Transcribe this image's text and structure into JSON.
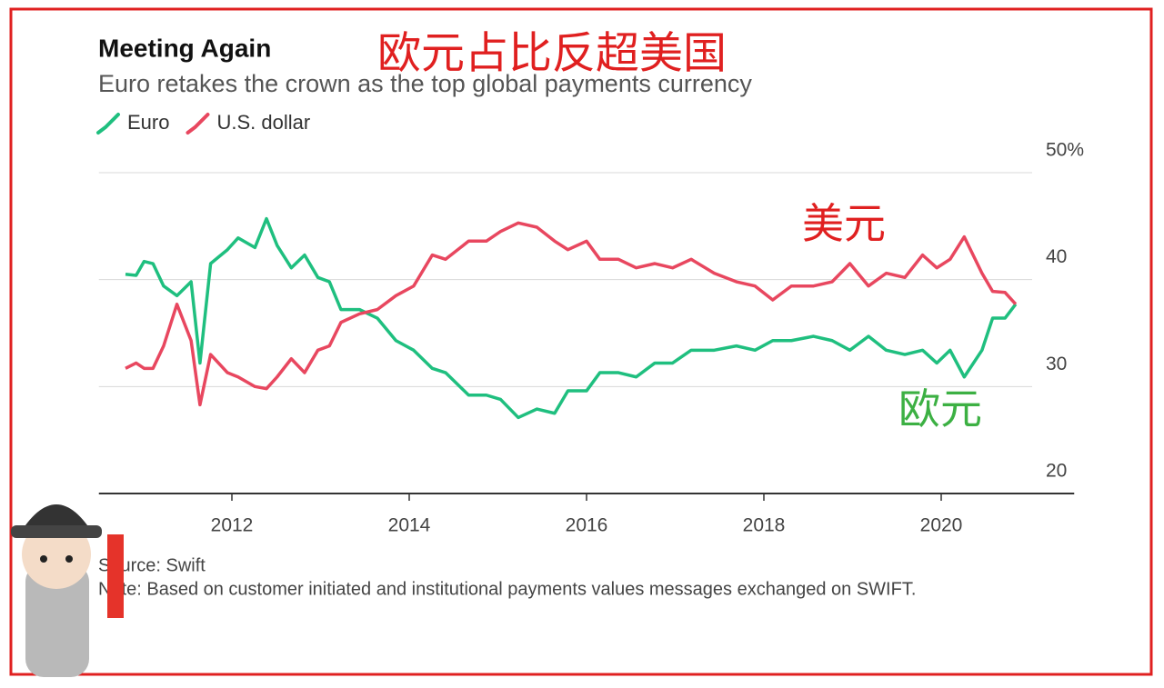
{
  "chart_data": {
    "type": "line",
    "title": "Meeting Again",
    "subtitle": "Euro retakes the crown as the top global payments currency",
    "source": "Source: Swift",
    "note": "Note: Based on customer initiated and institutional payments values messages exchanged on SWIFT.",
    "annotations": [
      {
        "text": "欧元占比反超美国",
        "color": "#e02020"
      },
      {
        "text": "美元",
        "color": "#e02020"
      },
      {
        "text": "欧元",
        "color": "#3cb043"
      }
    ],
    "x": [
      2010.8,
      2010.92,
      2011.01,
      2011.11,
      2011.23,
      2011.38,
      2011.54,
      2011.64,
      2011.76,
      2011.95,
      2012.07,
      2012.26,
      2012.39,
      2012.51,
      2012.67,
      2012.82,
      2012.97,
      2013.1,
      2013.23,
      2013.44,
      2013.64,
      2013.85,
      2014.05,
      2014.26,
      2014.41,
      2014.67,
      2014.87,
      2015.03,
      2015.23,
      2015.44,
      2015.64,
      2015.79,
      2016.0,
      2016.15,
      2016.36,
      2016.56,
      2016.77,
      2016.97,
      2017.18,
      2017.44,
      2017.69,
      2017.9,
      2018.1,
      2018.31,
      2018.56,
      2018.77,
      2018.97,
      2019.18,
      2019.38,
      2019.59,
      2019.79,
      2019.95,
      2020.1,
      2020.26,
      2020.46,
      2020.58,
      2020.72,
      2020.84
    ],
    "series": [
      {
        "name": "Euro",
        "color": "#1fbf7f",
        "values": [
          40.5,
          40.4,
          41.7,
          41.5,
          39.4,
          38.5,
          39.8,
          32.2,
          41.5,
          42.8,
          43.9,
          43.0,
          45.7,
          43.2,
          41.1,
          42.3,
          40.2,
          39.8,
          37.2,
          37.2,
          36.4,
          34.3,
          33.4,
          31.7,
          31.3,
          29.2,
          29.2,
          28.8,
          27.1,
          27.9,
          27.5,
          29.6,
          29.6,
          31.3,
          31.3,
          30.9,
          32.2,
          32.2,
          33.4,
          33.4,
          33.8,
          33.4,
          34.3,
          34.3,
          34.7,
          34.3,
          33.4,
          34.7,
          33.4,
          33.0,
          33.4,
          32.2,
          33.4,
          30.9,
          33.4,
          36.4,
          36.4,
          37.7
        ]
      },
      {
        "name": "U.S. dollar",
        "color": "#e8475f",
        "values": [
          31.7,
          32.2,
          31.7,
          31.7,
          33.8,
          37.7,
          34.3,
          28.3,
          33.0,
          31.3,
          30.9,
          30.0,
          29.8,
          30.9,
          32.6,
          31.3,
          33.4,
          33.8,
          36.0,
          36.8,
          37.2,
          38.5,
          39.4,
          42.3,
          41.9,
          43.6,
          43.6,
          44.5,
          45.3,
          44.9,
          43.6,
          42.8,
          43.6,
          41.9,
          41.9,
          41.1,
          41.5,
          41.1,
          41.9,
          40.6,
          39.8,
          39.4,
          38.1,
          39.4,
          39.4,
          39.8,
          41.5,
          39.4,
          40.6,
          40.2,
          42.3,
          41.1,
          41.9,
          44.0,
          40.6,
          38.9,
          38.8,
          37.7
        ]
      }
    ],
    "xlim": [
      2010.5,
      2021.5
    ],
    "xticks": [
      2012,
      2014,
      2016,
      2018,
      2020
    ],
    "ylim": [
      20,
      50
    ],
    "yticks": [
      20,
      30,
      40,
      {
        "value": 50,
        "label": "50%"
      }
    ],
    "grid": true
  }
}
